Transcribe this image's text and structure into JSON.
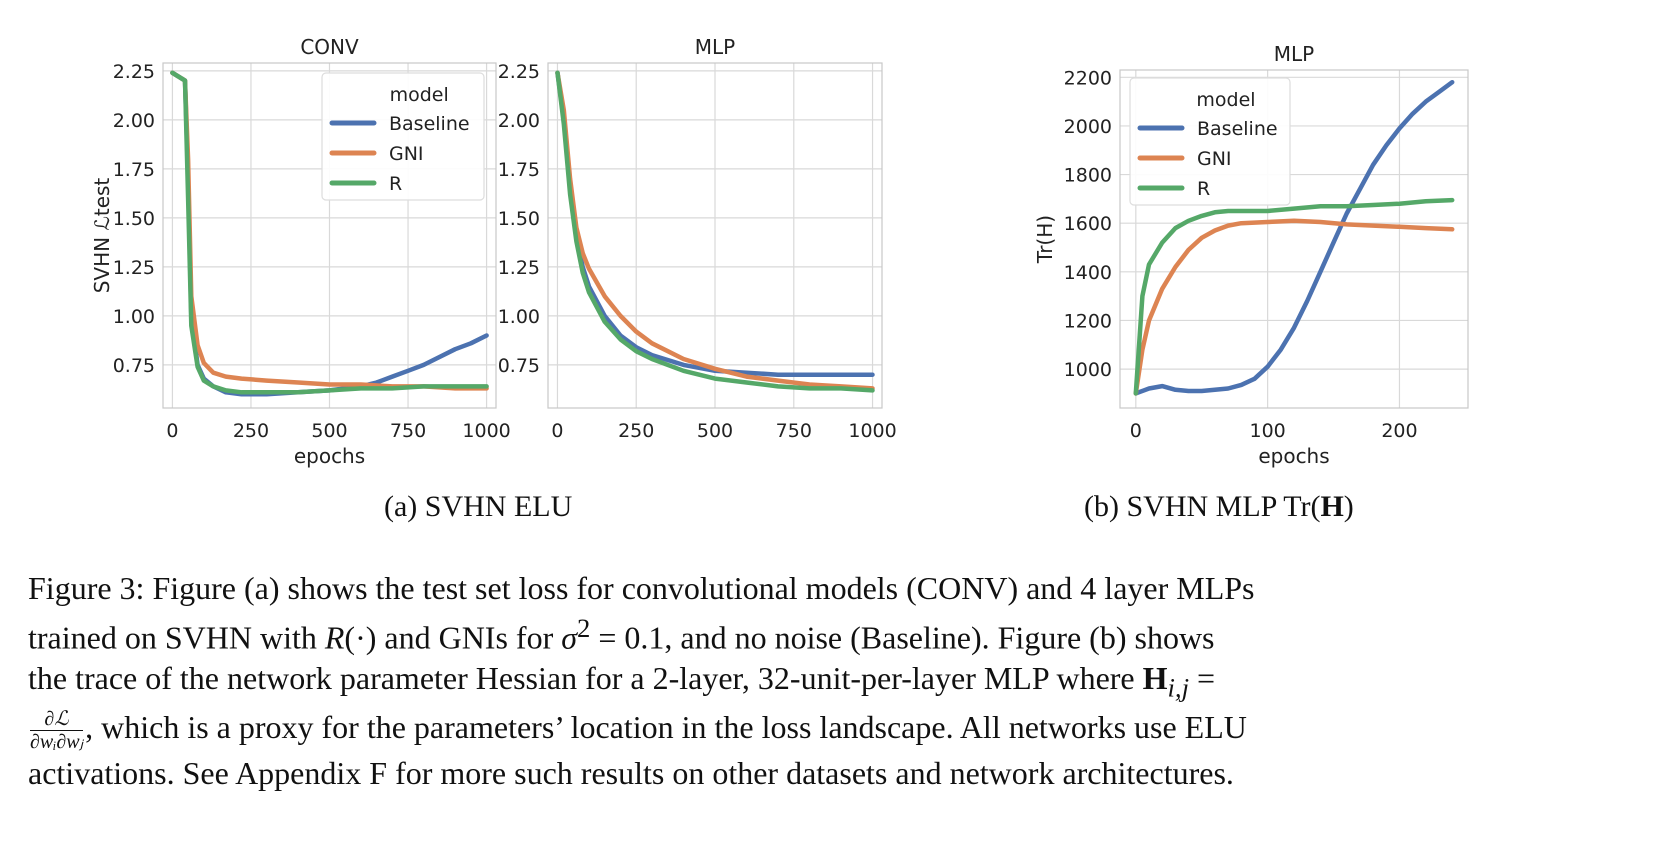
{
  "colors": {
    "baseline": "#4c72b0",
    "gni": "#dd8452",
    "r": "#55a868",
    "grid": "#d9d9d9",
    "frame": "#c8c8c8"
  },
  "chart_data": [
    {
      "type": "line",
      "title": "CONV",
      "xlabel": "epochs",
      "ylabel": "SVHN ℒtest",
      "xlim": [
        -30,
        1030
      ],
      "ylim": [
        0.53,
        2.29
      ],
      "xticks": [
        0,
        250,
        500,
        750,
        1000
      ],
      "yticks": [
        0.75,
        1.0,
        1.25,
        1.5,
        1.75,
        2.0,
        2.25
      ],
      "ytick_labels": [
        "0.75",
        "1.00",
        "1.25",
        "1.50",
        "1.75",
        "2.00",
        "2.25"
      ],
      "grid": true,
      "legend": {
        "title": "model",
        "placement": "upper right"
      },
      "series": [
        {
          "name": "Baseline",
          "x": [
            0,
            20,
            40,
            50,
            60,
            80,
            100,
            130,
            170,
            220,
            300,
            400,
            500,
            600,
            650,
            700,
            750,
            800,
            850,
            900,
            950,
            1000
          ],
          "y": [
            2.24,
            2.22,
            2.2,
            1.7,
            1.0,
            0.75,
            0.68,
            0.64,
            0.61,
            0.6,
            0.6,
            0.61,
            0.62,
            0.64,
            0.66,
            0.69,
            0.72,
            0.75,
            0.79,
            0.83,
            0.86,
            0.9
          ]
        },
        {
          "name": "GNI",
          "x": [
            0,
            20,
            40,
            50,
            60,
            80,
            100,
            130,
            170,
            220,
            300,
            400,
            500,
            600,
            700,
            800,
            900,
            1000
          ],
          "y": [
            2.24,
            2.22,
            2.2,
            1.8,
            1.1,
            0.85,
            0.76,
            0.71,
            0.69,
            0.68,
            0.67,
            0.66,
            0.65,
            0.65,
            0.64,
            0.64,
            0.63,
            0.63
          ]
        },
        {
          "name": "R",
          "x": [
            0,
            20,
            40,
            50,
            60,
            80,
            100,
            130,
            170,
            220,
            300,
            400,
            500,
            600,
            700,
            800,
            900,
            1000
          ],
          "y": [
            2.24,
            2.22,
            2.2,
            1.6,
            0.95,
            0.74,
            0.67,
            0.64,
            0.62,
            0.61,
            0.61,
            0.61,
            0.62,
            0.63,
            0.63,
            0.64,
            0.64,
            0.64
          ]
        }
      ]
    },
    {
      "type": "line",
      "title": "MLP",
      "xlabel": "",
      "ylabel": "",
      "xlim": [
        -30,
        1030
      ],
      "ylim": [
        0.53,
        2.29
      ],
      "xticks": [
        0,
        250,
        500,
        750,
        1000
      ],
      "yticks": [
        0.75,
        1.0,
        1.25,
        1.5,
        1.75,
        2.0,
        2.25
      ],
      "ytick_labels": [
        "0.75",
        "1.00",
        "1.25",
        "1.50",
        "1.75",
        "2.00",
        "2.25"
      ],
      "grid": true,
      "series": [
        {
          "name": "Baseline",
          "x": [
            0,
            20,
            40,
            60,
            80,
            100,
            150,
            200,
            250,
            300,
            400,
            500,
            600,
            700,
            800,
            900,
            1000
          ],
          "y": [
            2.24,
            2.0,
            1.65,
            1.4,
            1.25,
            1.15,
            1.0,
            0.9,
            0.84,
            0.8,
            0.75,
            0.72,
            0.71,
            0.7,
            0.7,
            0.7,
            0.7
          ]
        },
        {
          "name": "GNI",
          "x": [
            0,
            20,
            40,
            60,
            80,
            100,
            150,
            200,
            250,
            300,
            400,
            500,
            600,
            700,
            800,
            900,
            1000
          ],
          "y": [
            2.24,
            2.05,
            1.7,
            1.45,
            1.32,
            1.24,
            1.1,
            1.0,
            0.92,
            0.86,
            0.78,
            0.73,
            0.69,
            0.67,
            0.65,
            0.64,
            0.63
          ]
        },
        {
          "name": "R",
          "x": [
            0,
            20,
            40,
            60,
            80,
            100,
            150,
            200,
            250,
            300,
            400,
            500,
            600,
            700,
            800,
            900,
            1000
          ],
          "y": [
            2.24,
            1.98,
            1.62,
            1.38,
            1.22,
            1.12,
            0.97,
            0.88,
            0.82,
            0.78,
            0.72,
            0.68,
            0.66,
            0.64,
            0.63,
            0.63,
            0.62
          ]
        }
      ]
    },
    {
      "type": "line",
      "title": "MLP",
      "xlabel": "epochs",
      "ylabel": "Tr(H)",
      "xlim": [
        -12,
        252
      ],
      "ylim": [
        840,
        2230
      ],
      "xticks": [
        0,
        100,
        200
      ],
      "yticks": [
        1000,
        1200,
        1400,
        1600,
        1800,
        2000,
        2200
      ],
      "ytick_labels": [
        "1000",
        "1200",
        "1400",
        "1600",
        "1800",
        "2000",
        "2200"
      ],
      "grid": true,
      "legend": {
        "title": "model",
        "placement": "upper left"
      },
      "series": [
        {
          "name": "Baseline",
          "x": [
            0,
            10,
            20,
            30,
            40,
            50,
            60,
            70,
            80,
            90,
            100,
            110,
            120,
            130,
            140,
            150,
            160,
            170,
            180,
            190,
            200,
            210,
            220,
            230,
            240
          ],
          "y": [
            900,
            920,
            930,
            915,
            910,
            910,
            915,
            920,
            935,
            960,
            1010,
            1080,
            1170,
            1280,
            1400,
            1520,
            1640,
            1740,
            1840,
            1920,
            1990,
            2050,
            2100,
            2140,
            2180
          ]
        },
        {
          "name": "GNI",
          "x": [
            0,
            5,
            10,
            20,
            30,
            40,
            50,
            60,
            70,
            80,
            100,
            120,
            140,
            160,
            180,
            200,
            220,
            240
          ],
          "y": [
            900,
            1080,
            1200,
            1330,
            1420,
            1490,
            1540,
            1570,
            1590,
            1600,
            1605,
            1610,
            1605,
            1595,
            1590,
            1585,
            1580,
            1575
          ]
        },
        {
          "name": "R",
          "x": [
            0,
            5,
            10,
            20,
            30,
            40,
            50,
            60,
            70,
            80,
            100,
            120,
            140,
            160,
            180,
            200,
            220,
            240
          ],
          "y": [
            900,
            1300,
            1430,
            1520,
            1580,
            1610,
            1630,
            1645,
            1650,
            1650,
            1650,
            1660,
            1670,
            1670,
            1675,
            1680,
            1690,
            1695
          ]
        }
      ]
    }
  ],
  "panel_captions": {
    "a": "(a) SVHN ELU",
    "b_prefix": "(b) SVHN MLP Tr(",
    "b_bold": "H",
    "b_suffix": ")"
  },
  "caption": {
    "line1": "Figure 3: Figure (a) shows the test set loss for convolutional models (CONV) and 4 layer MLPs",
    "line2_pre": "trained on SVHN with",
    "line2_R": "R",
    "line2_arg": "(·) and GNIs for",
    "line2_sigma": "σ",
    "line2_sup": "2",
    "line2_eq": "= 0.1, and no noise (Baseline). Figure (b) shows",
    "line3_pre": "the trace of the network parameter Hessian for a 2-layer, 32-unit-per-layer MLP where",
    "line3_H": "H",
    "line3_sub": "i,j",
    "line3_eq": "=",
    "frac_num": "∂ℒ",
    "frac_den": "∂wᵢ∂wⱼ",
    "line4_post": ", which is a proxy for the parameters’ location in the loss landscape. All networks use ELU",
    "line5": "activations. See Appendix F for more such results on other datasets and network architectures."
  }
}
